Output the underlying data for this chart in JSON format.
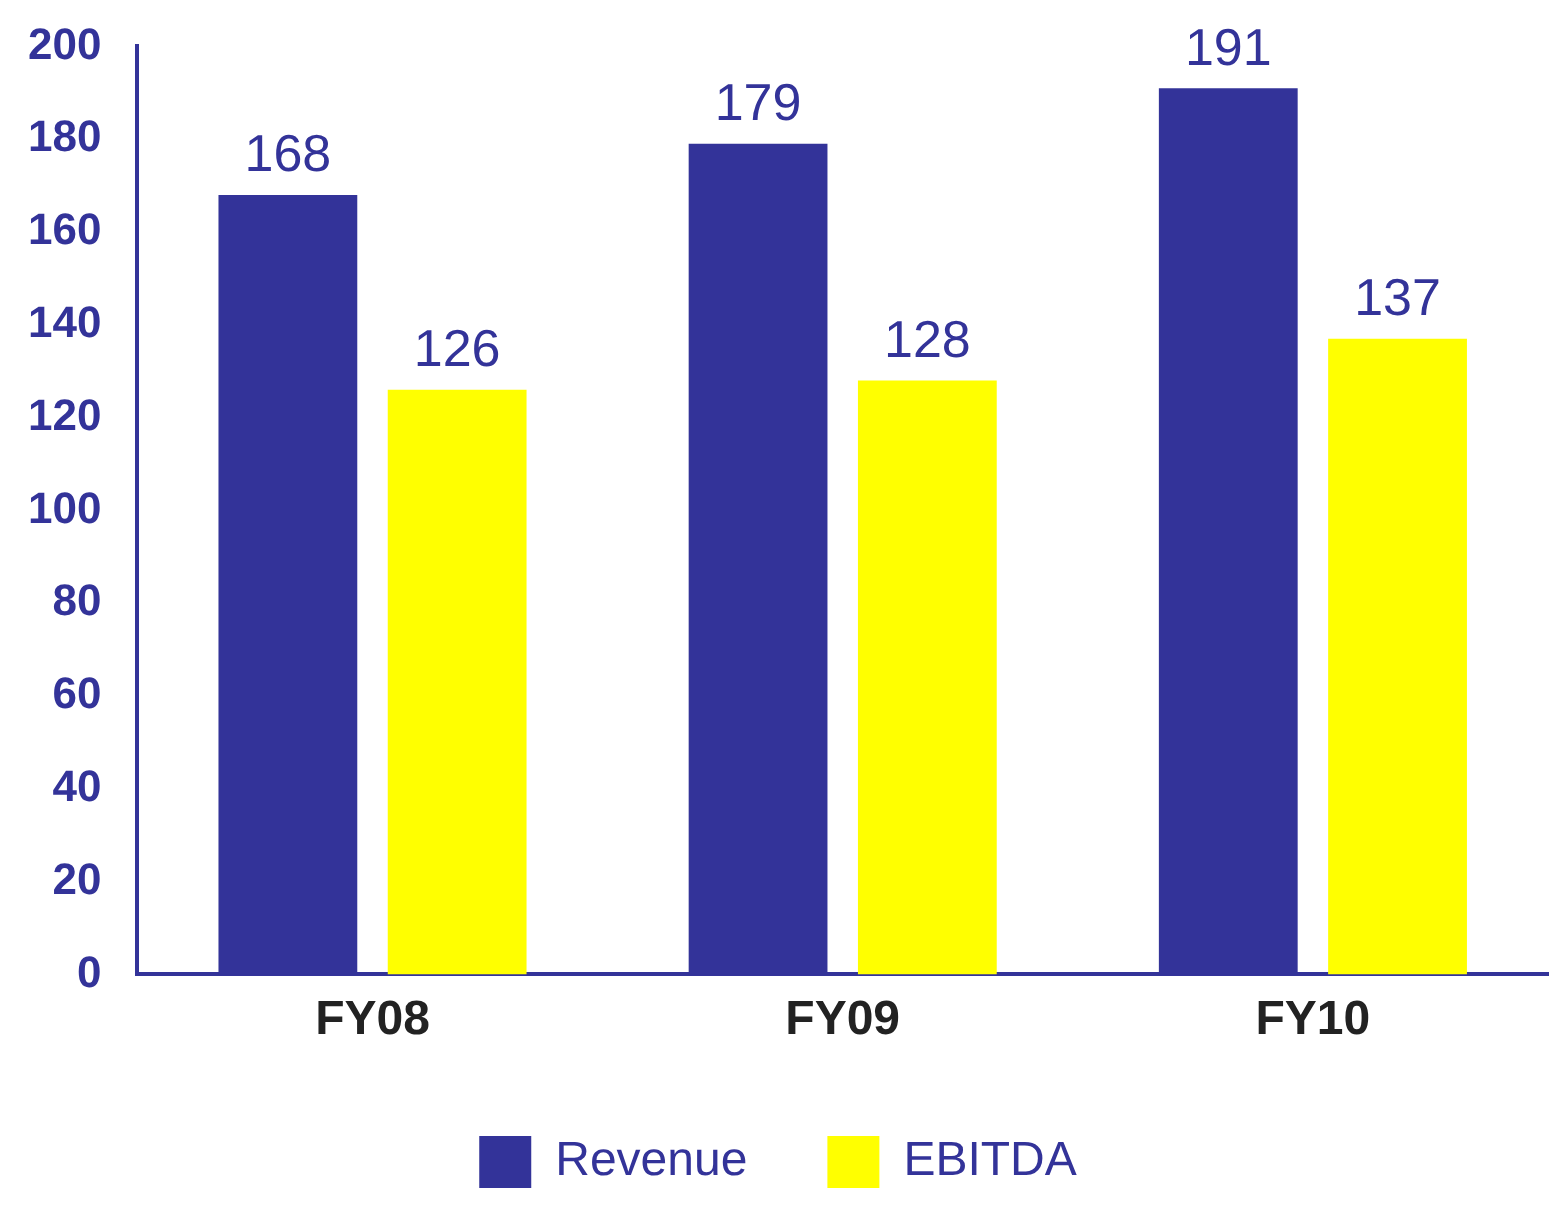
{
  "chart_data": {
    "type": "bar",
    "categories": [
      "FY08",
      "FY09",
      "FY10"
    ],
    "series": [
      {
        "name": "Revenue",
        "color": "#333399",
        "values": [
          168,
          179,
          191
        ]
      },
      {
        "name": "EBITDA",
        "color": "#ffff00",
        "values": [
          126,
          128,
          137
        ]
      }
    ],
    "ylim": [
      0,
      200
    ],
    "yticks": [
      0,
      20,
      40,
      60,
      80,
      100,
      120,
      140,
      160,
      180,
      200
    ],
    "grid": false,
    "legend": "bottom",
    "data_labels": true
  }
}
